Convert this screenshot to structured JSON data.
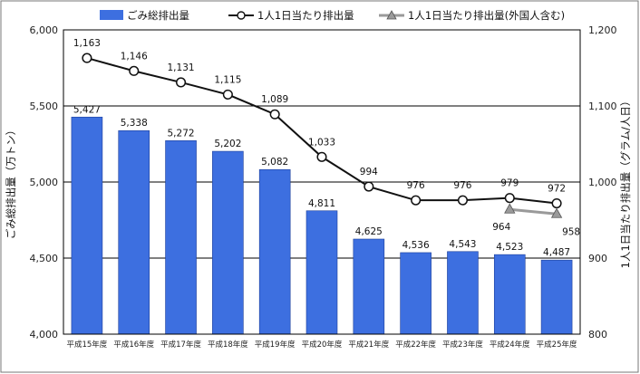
{
  "chart_data": {
    "type": "bar",
    "categories": [
      "平成15年度",
      "平成16年度",
      "平成17年度",
      "平成18年度",
      "平成19年度",
      "平成20年度",
      "平成21年度",
      "平成22年度",
      "平成23年度",
      "平成24年度",
      "平成25年度"
    ],
    "ylabel": "ごみ総排出量（万トン）",
    "y2label": "1人1日当たり排出量（グラム/人日）",
    "ylim": [
      4000,
      6000
    ],
    "y2lim": [
      800,
      1200
    ],
    "yticks": [
      4000,
      4500,
      5000,
      5500,
      6000
    ],
    "y2ticks": [
      800,
      900,
      1000,
      1100,
      1200
    ],
    "legend_position": "top",
    "series": [
      {
        "name": "ごみ総排出量",
        "type": "bar",
        "axis": "left",
        "color": "#3d6fe0",
        "values": [
          5427,
          5338,
          5272,
          5202,
          5082,
          4811,
          4625,
          4536,
          4543,
          4523,
          4487
        ]
      },
      {
        "name": "1人1日当たり排出量",
        "type": "line",
        "axis": "right",
        "color": "#111111",
        "marker": "circle",
        "values": [
          1163,
          1146,
          1131,
          1115,
          1089,
          1033,
          994,
          976,
          976,
          979,
          972
        ]
      },
      {
        "name": "1人1日当たり排出量(外国人含む)",
        "type": "line",
        "axis": "right",
        "color": "#9a9a9a",
        "marker": "triangle",
        "values": [
          null,
          null,
          null,
          null,
          null,
          null,
          null,
          null,
          null,
          964,
          958
        ]
      }
    ]
  }
}
